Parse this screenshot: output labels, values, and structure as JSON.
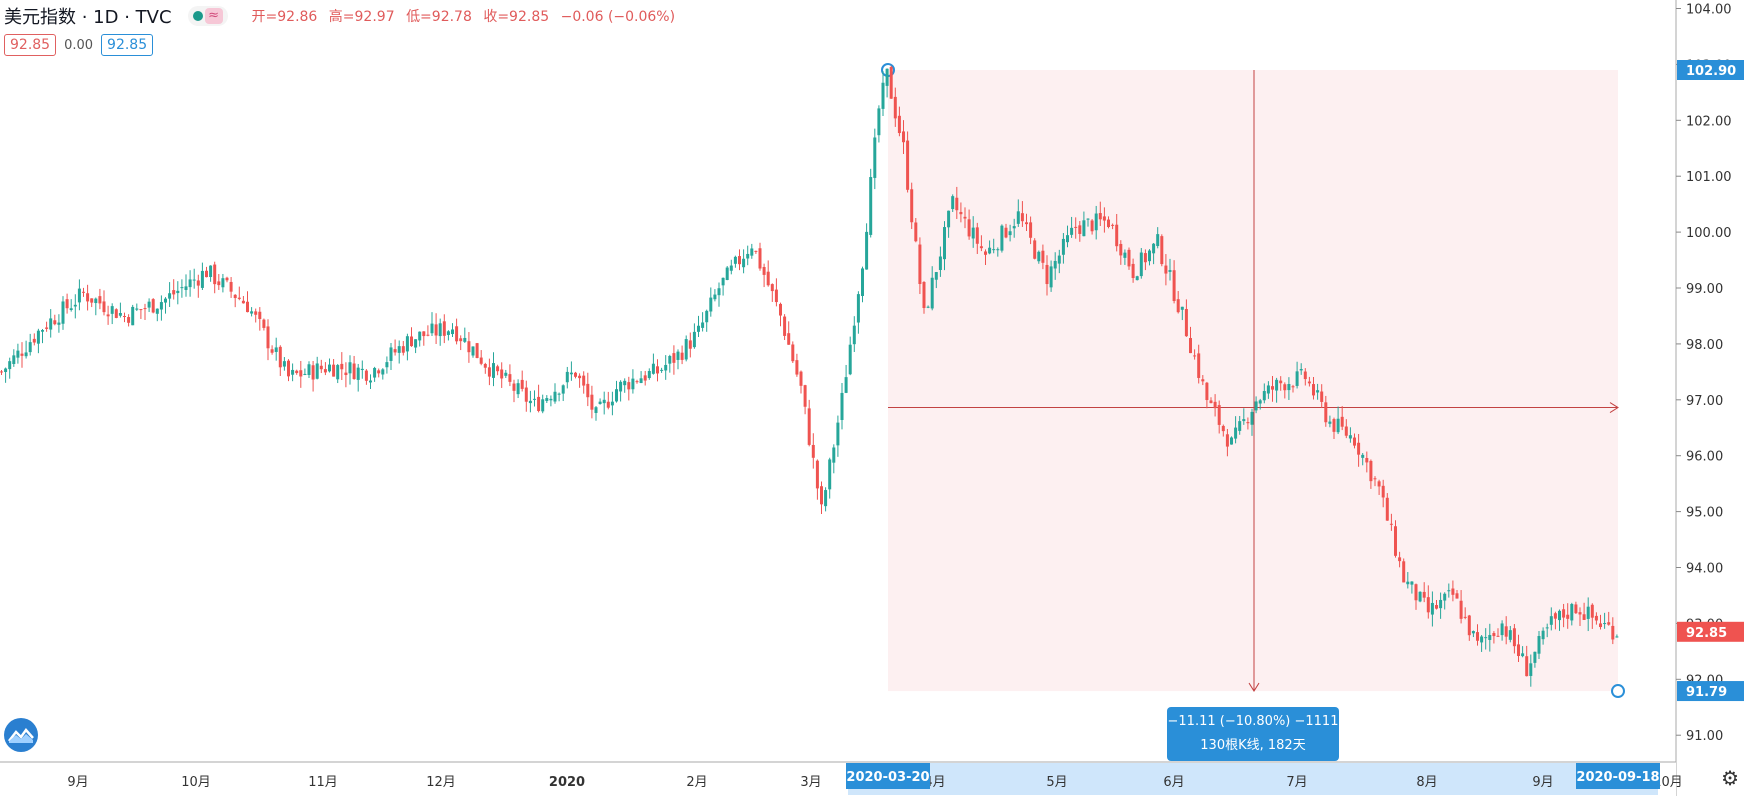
{
  "header": {
    "symbol": "美元指数 · 1D · TVC",
    "ohlc": {
      "open": "开=92.86",
      "high": "高=92.97",
      "low": "低=92.78",
      "close": "收=92.85",
      "change": "−0.06 (−0.06%)"
    },
    "values": {
      "bid": "92.85",
      "spread": "0.00",
      "ask": "92.85"
    },
    "icons": [
      "dot-icon",
      "wave-icon"
    ]
  },
  "measure": {
    "start_date": "2020-03-20",
    "end_date": "2020-09-18",
    "start_price": "102.90",
    "end_price": "91.79",
    "line1": "−11.11 (−10.80%) −1111",
    "line2": "130根K线, 182天"
  },
  "last_price_label": "92.85",
  "colors": {
    "up": "#26a69a",
    "down": "#ef5350",
    "measure_fill": "#fdf0f1",
    "measure_line": "#c24242",
    "accent_blue": "#2a8fd8"
  },
  "chart_data": {
    "type": "candlestick",
    "title": "美元指数 · 1D · TVC",
    "ylim": [
      90.5,
      104.3
    ],
    "y_ticks": [
      "104.00",
      "103.00",
      "102.00",
      "101.00",
      "100.00",
      "99.00",
      "98.00",
      "97.00",
      "96.00",
      "95.00",
      "94.00",
      "93.00",
      "92.00",
      "91.00"
    ],
    "x_ticks": [
      "9月",
      "10月",
      "11月",
      "12月",
      "2020",
      "2月",
      "3月",
      "4月",
      "5月",
      "6月",
      "7月",
      "8月",
      "9月",
      "10月"
    ],
    "anchors": [
      {
        "i": 0,
        "v": 97.5
      },
      {
        "i": 10,
        "v": 98.3
      },
      {
        "i": 20,
        "v": 98.9
      },
      {
        "i": 30,
        "v": 98.5
      },
      {
        "i": 40,
        "v": 98.8
      },
      {
        "i": 50,
        "v": 99.3
      },
      {
        "i": 60,
        "v": 98.7
      },
      {
        "i": 70,
        "v": 97.4
      },
      {
        "i": 80,
        "v": 97.6
      },
      {
        "i": 90,
        "v": 97.5
      },
      {
        "i": 100,
        "v": 98.1
      },
      {
        "i": 110,
        "v": 98.3
      },
      {
        "i": 120,
        "v": 97.5
      },
      {
        "i": 130,
        "v": 96.9
      },
      {
        "i": 140,
        "v": 97.5
      },
      {
        "i": 145,
        "v": 96.7
      },
      {
        "i": 150,
        "v": 97.2
      },
      {
        "i": 155,
        "v": 97.4
      },
      {
        "i": 160,
        "v": 97.5
      },
      {
        "i": 165,
        "v": 97.8
      },
      {
        "i": 170,
        "v": 98.2
      },
      {
        "i": 175,
        "v": 99.0
      },
      {
        "i": 180,
        "v": 99.5
      },
      {
        "i": 183,
        "v": 99.8
      },
      {
        "i": 190,
        "v": 98.5
      },
      {
        "i": 195,
        "v": 97.2
      },
      {
        "i": 200,
        "v": 95.0
      },
      {
        "i": 205,
        "v": 97.0
      },
      {
        "i": 210,
        "v": 99.5
      },
      {
        "i": 214,
        "v": 102.2
      },
      {
        "i": 216,
        "v": 102.8
      },
      {
        "i": 220,
        "v": 101.5
      },
      {
        "i": 225,
        "v": 98.5
      },
      {
        "i": 232,
        "v": 100.5
      },
      {
        "i": 240,
        "v": 99.6
      },
      {
        "i": 248,
        "v": 100.3
      },
      {
        "i": 255,
        "v": 99.2
      },
      {
        "i": 262,
        "v": 100.1
      },
      {
        "i": 270,
        "v": 100.2
      },
      {
        "i": 276,
        "v": 99.3
      },
      {
        "i": 282,
        "v": 99.8
      },
      {
        "i": 288,
        "v": 98.5
      },
      {
        "i": 294,
        "v": 97.0
      },
      {
        "i": 300,
        "v": 96.2
      },
      {
        "i": 306,
        "v": 97.0
      },
      {
        "i": 312,
        "v": 97.3
      },
      {
        "i": 318,
        "v": 97.4
      },
      {
        "i": 324,
        "v": 96.6
      },
      {
        "i": 330,
        "v": 96.3
      },
      {
        "i": 336,
        "v": 95.4
      },
      {
        "i": 342,
        "v": 93.8
      },
      {
        "i": 348,
        "v": 93.2
      },
      {
        "i": 354,
        "v": 93.5
      },
      {
        "i": 360,
        "v": 92.6
      },
      {
        "i": 366,
        "v": 93.0
      },
      {
        "i": 372,
        "v": 92.2
      },
      {
        "i": 378,
        "v": 93.0
      },
      {
        "i": 384,
        "v": 93.3
      },
      {
        "i": 390,
        "v": 93.0
      },
      {
        "i": 394,
        "v": 92.85
      }
    ]
  }
}
